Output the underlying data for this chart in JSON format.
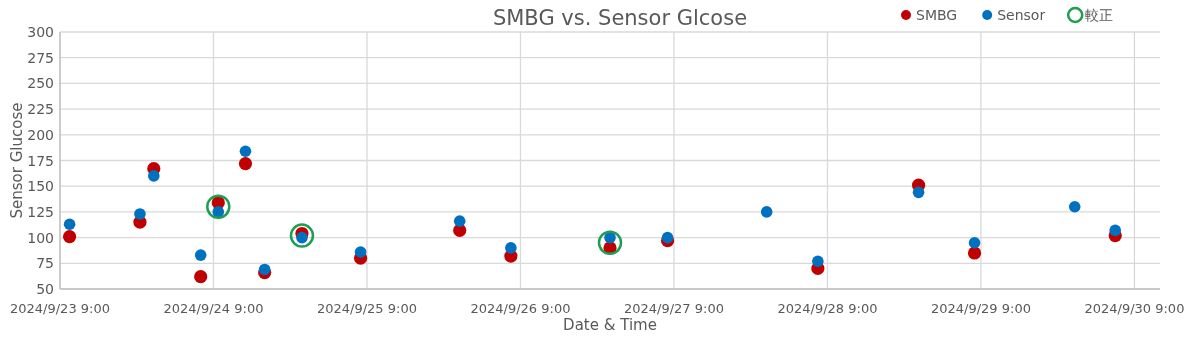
{
  "chart_data": {
    "type": "scatter",
    "title": "SMBG vs. Sensor Glcose",
    "xlabel": "Date & Time",
    "ylabel": "Sensor Glucose",
    "x": [
      "2024-09-23T10:30",
      "2024-09-23T21:30",
      "2024-09-23T23:40",
      "2024-09-24T07:00",
      "2024-09-24T09:45",
      "2024-09-24T14:00",
      "2024-09-24T17:00",
      "2024-09-24T22:50",
      "2024-09-25T08:00",
      "2024-09-25T23:30",
      "2024-09-26T07:30",
      "2024-09-26T23:00",
      "2024-09-27T08:00",
      "2024-09-27T23:30",
      "2024-09-28T07:30",
      "2024-09-28T23:15",
      "2024-09-29T08:00",
      "2024-09-29T23:40",
      "2024-09-30T06:00"
    ],
    "series": [
      {
        "name": "SMBG",
        "color": "#c00000",
        "values": [
          101,
          115,
          167,
          62,
          134,
          172,
          66,
          104,
          80,
          107,
          82,
          90,
          97,
          null,
          70,
          151,
          85,
          null,
          102
        ]
      },
      {
        "name": "Sensor",
        "color": "#0070c0",
        "values": [
          113,
          123,
          160,
          83,
          125,
          184,
          69,
          100,
          86,
          116,
          90,
          100,
          100,
          125,
          77,
          144,
          95,
          130,
          107
        ]
      },
      {
        "name": "較正",
        "color": "#1e9e50",
        "type": "scatter",
        "marker": "circle",
        "values": [
          null,
          null,
          null,
          null,
          130,
          null,
          null,
          102,
          null,
          null,
          null,
          95,
          null,
          null,
          null,
          null,
          null,
          null,
          null
        ]
      }
    ],
    "xlim": [
      "2024-09-23T09:00",
      "2024-09-30T13:00"
    ],
    "xticks": [
      {
        "value": "2024-09-23T09:00",
        "label": "2024/9/23 9:00"
      },
      {
        "value": "2024-09-24T09:00",
        "label": "2024/9/24 9:00"
      },
      {
        "value": "2024-09-25T09:00",
        "label": "2024/9/25 9:00"
      },
      {
        "value": "2024-09-26T09:00",
        "label": "2024/9/26 9:00"
      },
      {
        "value": "2024-09-27T09:00",
        "label": "2024/9/27 9:00"
      },
      {
        "value": "2024-09-28T09:00",
        "label": "2024/9/28 9:00"
      },
      {
        "value": "2024-09-29T09:00",
        "label": "2024/9/29 9:00"
      },
      {
        "value": "2024-09-30T09:00",
        "label": "2024/9/30 9:00"
      }
    ],
    "ylim": [
      50,
      300
    ],
    "yticks": [
      50,
      75,
      100,
      125,
      150,
      175,
      200,
      225,
      250,
      275,
      300
    ],
    "grid": true,
    "legend": "top right",
    "marker": "circle"
  }
}
